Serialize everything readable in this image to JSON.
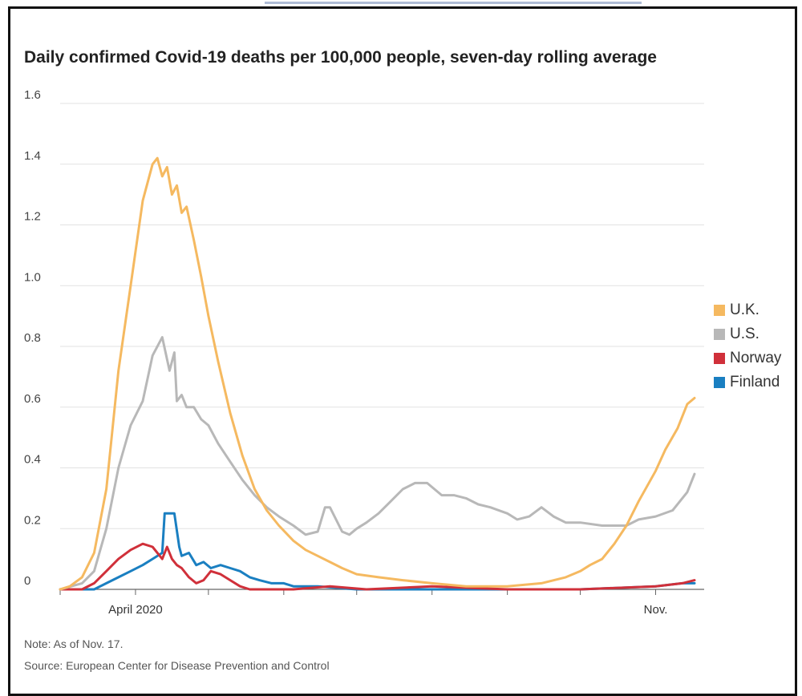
{
  "chart_data": {
    "type": "line",
    "title": "Daily confirmed Covid-19 deaths per 100,000 people, seven-day rolling average",
    "xlabel": "",
    "ylabel": "",
    "x_tick_labels": [
      "April 2020",
      "Nov."
    ],
    "x_range": [
      "2020-03-01",
      "2020-11-17"
    ],
    "ylim": [
      0,
      1.6
    ],
    "yticks": [
      0,
      0.2,
      0.4,
      0.6,
      0.8,
      1.0,
      1.2,
      1.4,
      1.6
    ],
    "ytick_labels": [
      "0",
      "0.2",
      "0.4",
      "0.6",
      "0.8",
      "1.0",
      "1.2",
      "1.4",
      "1.6"
    ],
    "grid": true,
    "legend_position": "right",
    "series": [
      {
        "name": "U.K.",
        "color": "#f5b960",
        "x": [
          "2020-03-01",
          "2020-03-05",
          "2020-03-10",
          "2020-03-15",
          "2020-03-20",
          "2020-03-25",
          "2020-03-30",
          "2020-04-04",
          "2020-04-08",
          "2020-04-10",
          "2020-04-12",
          "2020-04-14",
          "2020-04-16",
          "2020-04-18",
          "2020-04-20",
          "2020-04-22",
          "2020-04-25",
          "2020-04-28",
          "2020-05-01",
          "2020-05-05",
          "2020-05-10",
          "2020-05-15",
          "2020-05-20",
          "2020-05-25",
          "2020-05-30",
          "2020-06-05",
          "2020-06-10",
          "2020-06-15",
          "2020-06-20",
          "2020-06-25",
          "2020-07-01",
          "2020-07-10",
          "2020-07-20",
          "2020-08-01",
          "2020-08-15",
          "2020-09-01",
          "2020-09-15",
          "2020-09-25",
          "2020-10-01",
          "2020-10-05",
          "2020-10-10",
          "2020-10-15",
          "2020-10-20",
          "2020-10-25",
          "2020-11-01",
          "2020-11-05",
          "2020-11-10",
          "2020-11-14",
          "2020-11-17"
        ],
        "values": [
          0.0,
          0.01,
          0.04,
          0.12,
          0.33,
          0.72,
          1.0,
          1.28,
          1.4,
          1.42,
          1.36,
          1.39,
          1.3,
          1.33,
          1.24,
          1.26,
          1.15,
          1.03,
          0.9,
          0.75,
          0.58,
          0.44,
          0.33,
          0.26,
          0.21,
          0.16,
          0.13,
          0.11,
          0.09,
          0.07,
          0.05,
          0.04,
          0.03,
          0.02,
          0.01,
          0.01,
          0.02,
          0.04,
          0.06,
          0.08,
          0.1,
          0.15,
          0.21,
          0.29,
          0.39,
          0.46,
          0.53,
          0.61,
          0.63
        ]
      },
      {
        "name": "U.S.",
        "color": "#b8b8b8",
        "x": [
          "2020-03-01",
          "2020-03-10",
          "2020-03-15",
          "2020-03-20",
          "2020-03-25",
          "2020-03-30",
          "2020-04-04",
          "2020-04-08",
          "2020-04-12",
          "2020-04-15",
          "2020-04-17",
          "2020-04-18",
          "2020-04-20",
          "2020-04-22",
          "2020-04-25",
          "2020-04-28",
          "2020-05-01",
          "2020-05-05",
          "2020-05-10",
          "2020-05-15",
          "2020-05-20",
          "2020-05-25",
          "2020-05-30",
          "2020-06-05",
          "2020-06-10",
          "2020-06-15",
          "2020-06-18",
          "2020-06-20",
          "2020-06-25",
          "2020-06-28",
          "2020-07-01",
          "2020-07-05",
          "2020-07-10",
          "2020-07-15",
          "2020-07-20",
          "2020-07-25",
          "2020-07-30",
          "2020-08-05",
          "2020-08-10",
          "2020-08-15",
          "2020-08-20",
          "2020-08-25",
          "2020-09-01",
          "2020-09-05",
          "2020-09-10",
          "2020-09-15",
          "2020-09-20",
          "2020-09-25",
          "2020-10-01",
          "2020-10-10",
          "2020-10-20",
          "2020-10-25",
          "2020-11-01",
          "2020-11-08",
          "2020-11-14",
          "2020-11-17"
        ],
        "values": [
          0.0,
          0.02,
          0.06,
          0.2,
          0.4,
          0.54,
          0.62,
          0.77,
          0.83,
          0.72,
          0.78,
          0.62,
          0.64,
          0.6,
          0.6,
          0.56,
          0.54,
          0.48,
          0.42,
          0.36,
          0.31,
          0.27,
          0.24,
          0.21,
          0.18,
          0.19,
          0.27,
          0.27,
          0.19,
          0.18,
          0.2,
          0.22,
          0.25,
          0.29,
          0.33,
          0.35,
          0.35,
          0.31,
          0.31,
          0.3,
          0.28,
          0.27,
          0.25,
          0.23,
          0.24,
          0.27,
          0.24,
          0.22,
          0.22,
          0.21,
          0.21,
          0.23,
          0.24,
          0.26,
          0.32,
          0.38
        ]
      },
      {
        "name": "Norway",
        "color": "#d0303a",
        "x": [
          "2020-03-01",
          "2020-03-10",
          "2020-03-15",
          "2020-03-20",
          "2020-03-25",
          "2020-03-30",
          "2020-04-04",
          "2020-04-08",
          "2020-04-12",
          "2020-04-14",
          "2020-04-16",
          "2020-04-18",
          "2020-04-20",
          "2020-04-23",
          "2020-04-26",
          "2020-04-29",
          "2020-05-02",
          "2020-05-06",
          "2020-05-10",
          "2020-05-14",
          "2020-05-18",
          "2020-05-22",
          "2020-05-27",
          "2020-06-05",
          "2020-06-20",
          "2020-07-05",
          "2020-08-01",
          "2020-09-01",
          "2020-10-01",
          "2020-11-01",
          "2020-11-12",
          "2020-11-17"
        ],
        "values": [
          0.0,
          0.0,
          0.02,
          0.06,
          0.1,
          0.13,
          0.15,
          0.14,
          0.1,
          0.14,
          0.1,
          0.08,
          0.07,
          0.04,
          0.02,
          0.03,
          0.06,
          0.05,
          0.03,
          0.01,
          0.0,
          0.0,
          0.0,
          0.0,
          0.01,
          0.0,
          0.01,
          0.0,
          0.0,
          0.01,
          0.02,
          0.03
        ]
      },
      {
        "name": "Finland",
        "color": "#1a7fc1",
        "x": [
          "2020-03-01",
          "2020-03-15",
          "2020-03-20",
          "2020-03-25",
          "2020-03-30",
          "2020-04-04",
          "2020-04-08",
          "2020-04-12",
          "2020-04-13",
          "2020-04-15",
          "2020-04-17",
          "2020-04-19",
          "2020-04-20",
          "2020-04-23",
          "2020-04-26",
          "2020-04-29",
          "2020-05-02",
          "2020-05-06",
          "2020-05-10",
          "2020-05-14",
          "2020-05-18",
          "2020-05-22",
          "2020-05-27",
          "2020-06-01",
          "2020-06-05",
          "2020-06-15",
          "2020-07-01",
          "2020-08-01",
          "2020-09-01",
          "2020-10-01",
          "2020-11-01",
          "2020-11-12",
          "2020-11-17"
        ],
        "values": [
          0.0,
          0.0,
          0.02,
          0.04,
          0.06,
          0.08,
          0.1,
          0.12,
          0.25,
          0.25,
          0.25,
          0.14,
          0.11,
          0.12,
          0.08,
          0.09,
          0.07,
          0.08,
          0.07,
          0.06,
          0.04,
          0.03,
          0.02,
          0.02,
          0.01,
          0.01,
          0.0,
          0.0,
          0.0,
          0.0,
          0.01,
          0.02,
          0.02
        ]
      }
    ]
  },
  "note": "Note: As of Nov. 17.",
  "source": "Source: European Center for Disease Prevention and Control"
}
